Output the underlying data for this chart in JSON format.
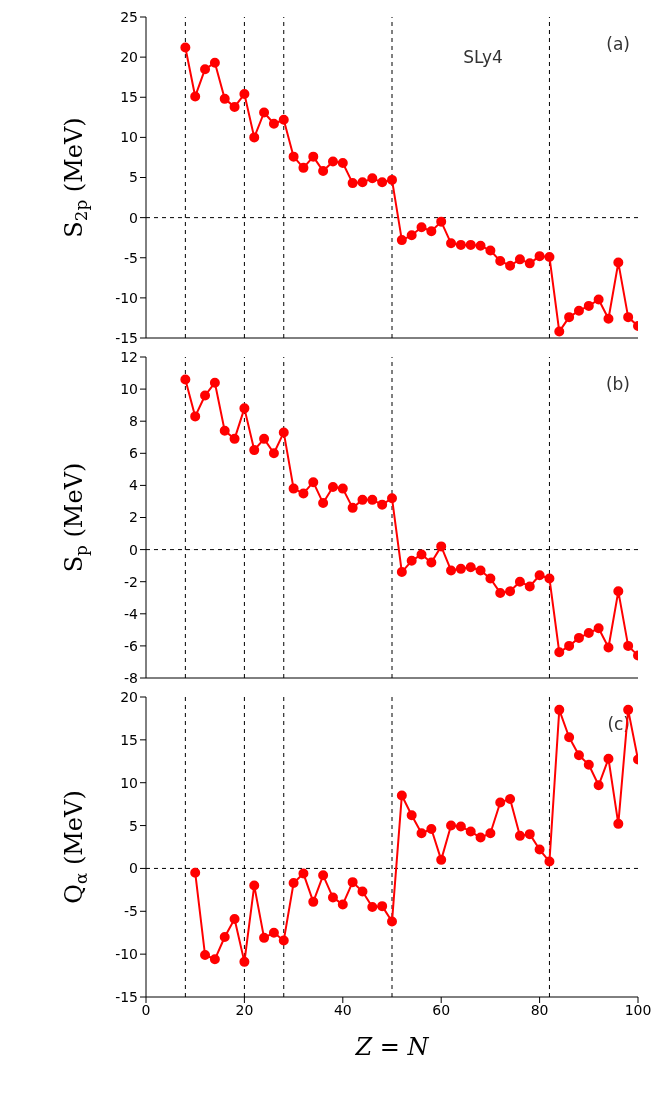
{
  "chart_data": [
    {
      "type": "line",
      "ylabel": "S$_{2p}$ (MeV)",
      "annotations": [
        "SLy4",
        "(a)"
      ],
      "x": [
        8,
        10,
        12,
        14,
        16,
        18,
        20,
        22,
        24,
        26,
        28,
        30,
        32,
        34,
        36,
        38,
        40,
        42,
        44,
        46,
        48,
        50,
        52,
        54,
        56,
        58,
        60,
        62,
        64,
        66,
        68,
        70,
        72,
        74,
        76,
        78,
        80,
        82,
        84,
        86,
        88,
        90,
        92,
        94,
        96,
        98,
        100
      ],
      "series": [
        {
          "color": "#ff0000",
          "values": [
            21.2,
            15.1,
            18.5,
            19.3,
            14.8,
            13.8,
            15.4,
            10.0,
            13.1,
            11.7,
            12.2,
            7.6,
            6.2,
            7.6,
            5.8,
            7.0,
            6.8,
            4.3,
            4.4,
            4.9,
            4.4,
            4.7,
            -2.8,
            -2.2,
            -1.2,
            -1.7,
            -0.5,
            -3.2,
            -3.4,
            -3.4,
            -3.5,
            -4.1,
            -5.4,
            -6.0,
            -5.2,
            -5.7,
            -4.8,
            -4.9,
            -14.2,
            -12.4,
            -11.6,
            -11.0,
            -10.2,
            -12.6,
            -5.6,
            -12.4,
            -13.5
          ]
        }
      ],
      "xlim": [
        0,
        100
      ],
      "xticks": [
        0,
        20,
        40,
        60,
        80,
        100
      ],
      "ylim": [
        -15,
        25
      ],
      "yticks": [
        -15,
        -10,
        -5,
        0,
        5,
        10,
        15,
        20,
        25
      ],
      "tick_labels": "y",
      "grid": false,
      "legend": false,
      "marker": "circle",
      "line_style": "solid",
      "ref_lines": [
        {
          "axis": "x",
          "value": 8,
          "line_style": "dashed"
        },
        {
          "axis": "x",
          "value": 20,
          "line_style": "dashed"
        },
        {
          "axis": "x",
          "value": 28,
          "line_style": "dashed"
        },
        {
          "axis": "x",
          "value": 50,
          "line_style": "dashed"
        },
        {
          "axis": "x",
          "value": 82,
          "line_style": "dashed"
        },
        {
          "axis": "y",
          "value": 0,
          "line_style": "dashed"
        }
      ]
    },
    {
      "type": "line",
      "ylabel": "S$_{p}$ (MeV)",
      "annotations": [
        "(b)"
      ],
      "x": [
        8,
        10,
        12,
        14,
        16,
        18,
        20,
        22,
        24,
        26,
        28,
        30,
        32,
        34,
        36,
        38,
        40,
        42,
        44,
        46,
        48,
        50,
        52,
        54,
        56,
        58,
        60,
        62,
        64,
        66,
        68,
        70,
        72,
        74,
        76,
        78,
        80,
        82,
        84,
        86,
        88,
        90,
        92,
        94,
        96,
        98,
        100
      ],
      "series": [
        {
          "color": "#ff0000",
          "values": [
            10.6,
            8.3,
            9.6,
            10.4,
            7.4,
            6.9,
            8.8,
            6.2,
            6.9,
            6.0,
            7.3,
            3.8,
            3.5,
            4.2,
            2.9,
            3.9,
            3.8,
            2.6,
            3.1,
            3.1,
            2.8,
            3.2,
            -1.4,
            -0.7,
            -0.3,
            -0.8,
            0.2,
            -1.3,
            -1.2,
            -1.1,
            -1.3,
            -1.8,
            -2.7,
            -2.6,
            -2.0,
            -2.3,
            -1.6,
            -1.8,
            -6.4,
            -6.0,
            -5.5,
            -5.2,
            -4.9,
            -6.1,
            -2.6,
            -6.0,
            -6.6
          ]
        }
      ],
      "xlim": [
        0,
        100
      ],
      "xticks": [
        0,
        20,
        40,
        60,
        80,
        100
      ],
      "ylim": [
        -8,
        12
      ],
      "yticks": [
        -8,
        -6,
        -4,
        -2,
        0,
        2,
        4,
        6,
        8,
        10,
        12
      ],
      "tick_labels": "y",
      "grid": false,
      "legend": false,
      "marker": "circle",
      "line_style": "solid",
      "ref_lines": [
        {
          "axis": "x",
          "value": 8,
          "line_style": "dashed"
        },
        {
          "axis": "x",
          "value": 20,
          "line_style": "dashed"
        },
        {
          "axis": "x",
          "value": 28,
          "line_style": "dashed"
        },
        {
          "axis": "x",
          "value": 50,
          "line_style": "dashed"
        },
        {
          "axis": "x",
          "value": 82,
          "line_style": "dashed"
        },
        {
          "axis": "y",
          "value": 0,
          "line_style": "dashed"
        }
      ]
    },
    {
      "type": "line",
      "ylabel": "Q$_{α}$ (MeV)",
      "xlabel": "Z = N",
      "annotations": [
        "(c)"
      ],
      "x": [
        10,
        12,
        14,
        16,
        18,
        20,
        22,
        24,
        26,
        28,
        30,
        32,
        34,
        36,
        38,
        40,
        42,
        44,
        46,
        48,
        50,
        52,
        54,
        56,
        58,
        60,
        62,
        64,
        66,
        68,
        70,
        72,
        74,
        76,
        78,
        80,
        82,
        84,
        86,
        88,
        90,
        92,
        94,
        96,
        98,
        100
      ],
      "series": [
        {
          "color": "#ff0000",
          "values": [
            -0.5,
            -10.1,
            -10.6,
            -8.0,
            -5.9,
            -10.9,
            -2.0,
            -8.1,
            -7.5,
            -8.4,
            -1.7,
            -0.6,
            -3.9,
            -0.8,
            -3.4,
            -4.2,
            -1.6,
            -2.7,
            -4.5,
            -4.4,
            -6.2,
            8.5,
            6.2,
            4.1,
            4.6,
            1.0,
            5.0,
            4.9,
            4.3,
            3.6,
            4.1,
            7.7,
            8.1,
            3.8,
            4.0,
            2.2,
            0.8,
            18.5,
            15.3,
            13.2,
            12.1,
            9.7,
            12.8,
            5.2,
            18.5,
            12.7
          ]
        }
      ],
      "xlim": [
        0,
        100
      ],
      "xticks": [
        0,
        20,
        40,
        60,
        80,
        100
      ],
      "ylim": [
        -15,
        20
      ],
      "yticks": [
        -15,
        -10,
        -5,
        0,
        5,
        10,
        15,
        20
      ],
      "grid": false,
      "legend": false,
      "marker": "circle",
      "line_style": "solid",
      "ref_lines": [
        {
          "axis": "x",
          "value": 8,
          "line_style": "dashed"
        },
        {
          "axis": "x",
          "value": 20,
          "line_style": "dashed"
        },
        {
          "axis": "x",
          "value": 28,
          "line_style": "dashed"
        },
        {
          "axis": "x",
          "value": 50,
          "line_style": "dashed"
        },
        {
          "axis": "x",
          "value": 82,
          "line_style": "dashed"
        },
        {
          "axis": "y",
          "value": 0,
          "line_style": "dashed"
        }
      ]
    }
  ]
}
